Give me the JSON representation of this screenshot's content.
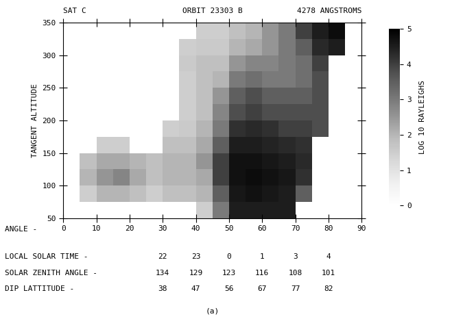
{
  "chart_data": {
    "type": "heatmap",
    "title_left": "SAT C",
    "title_center": "ORBIT 23303 B",
    "title_right": "4278 ANGSTROMS",
    "xlabel": "ANGLE -",
    "ylabel": "TANGENT ALTITUDE",
    "xlim": [
      0,
      90
    ],
    "xticks": [
      0,
      10,
      20,
      30,
      40,
      50,
      60,
      70,
      80,
      90
    ],
    "ylim": [
      50,
      350
    ],
    "yticks": [
      50,
      100,
      150,
      200,
      250,
      300,
      350
    ],
    "x_edges": [
      5,
      10,
      15,
      20,
      25,
      30,
      35,
      40,
      45,
      50,
      55,
      60,
      65,
      70,
      75,
      80,
      85
    ],
    "y_edges": [
      50,
      75,
      100,
      125,
      150,
      175,
      200,
      225,
      250,
      275,
      300,
      325,
      350
    ],
    "cells": [
      [
        null,
        null,
        null,
        null,
        null,
        null,
        null,
        1.5,
        3.0,
        4.5,
        4.5,
        4.5,
        4.5,
        null,
        null,
        null
      ],
      [
        1.5,
        2.0,
        2.0,
        1.8,
        1.5,
        1.8,
        1.8,
        2.0,
        3.5,
        4.6,
        4.7,
        4.6,
        4.5,
        3.5,
        null,
        null
      ],
      [
        2.0,
        2.5,
        2.8,
        2.2,
        1.8,
        2.0,
        2.0,
        2.2,
        4.0,
        4.7,
        4.8,
        4.7,
        4.6,
        4.2,
        null,
        null
      ],
      [
        1.8,
        2.2,
        2.2,
        2.0,
        1.8,
        2.0,
        2.0,
        2.5,
        4.0,
        4.7,
        4.7,
        4.6,
        4.5,
        4.3,
        null,
        null
      ],
      [
        null,
        1.5,
        1.5,
        null,
        null,
        1.8,
        1.8,
        2.2,
        3.5,
        4.5,
        4.5,
        4.4,
        4.3,
        4.2,
        null,
        null
      ],
      [
        null,
        null,
        null,
        null,
        null,
        1.5,
        1.6,
        2.0,
        3.0,
        4.2,
        4.3,
        4.2,
        4.0,
        4.0,
        3.8,
        null
      ],
      [
        null,
        null,
        null,
        null,
        null,
        null,
        1.5,
        1.8,
        2.8,
        3.8,
        4.0,
        3.8,
        3.8,
        3.8,
        3.8,
        null
      ],
      [
        null,
        null,
        null,
        null,
        null,
        null,
        1.5,
        1.8,
        2.5,
        3.5,
        3.8,
        3.5,
        3.5,
        3.5,
        3.8,
        null
      ],
      [
        null,
        null,
        null,
        null,
        null,
        null,
        1.5,
        1.8,
        2.0,
        3.0,
        3.2,
        3.0,
        3.0,
        3.2,
        3.8,
        null
      ],
      [
        null,
        null,
        null,
        null,
        null,
        null,
        1.6,
        1.8,
        1.8,
        2.5,
        2.8,
        2.8,
        3.0,
        3.2,
        4.0,
        null
      ],
      [
        null,
        null,
        null,
        null,
        null,
        null,
        1.5,
        1.6,
        1.6,
        2.0,
        2.2,
        2.5,
        3.0,
        3.5,
        4.3,
        4.5
      ],
      [
        null,
        null,
        null,
        null,
        null,
        null,
        null,
        1.5,
        1.5,
        1.8,
        2.0,
        2.5,
        3.0,
        4.0,
        4.5,
        4.8
      ]
    ],
    "colorbar_label": "LOG 10 RAYLEIGHS",
    "colorbar_lim": [
      0,
      5
    ],
    "colorbar_ticks": [
      0,
      1,
      2,
      3,
      4,
      5
    ],
    "table_angles": [
      30,
      40,
      50,
      60,
      70,
      80
    ],
    "table_rows": [
      {
        "label": "LOCAL SOLAR TIME -",
        "values": [
          22,
          23,
          0,
          1,
          3,
          4
        ]
      },
      {
        "label": "SOLAR ZENITH ANGLE -",
        "values": [
          134,
          129,
          123,
          116,
          108,
          101
        ]
      },
      {
        "label": "DIP LATTITUDE -",
        "values": [
          38,
          47,
          56,
          67,
          77,
          82
        ]
      }
    ],
    "caption": "(a)"
  }
}
